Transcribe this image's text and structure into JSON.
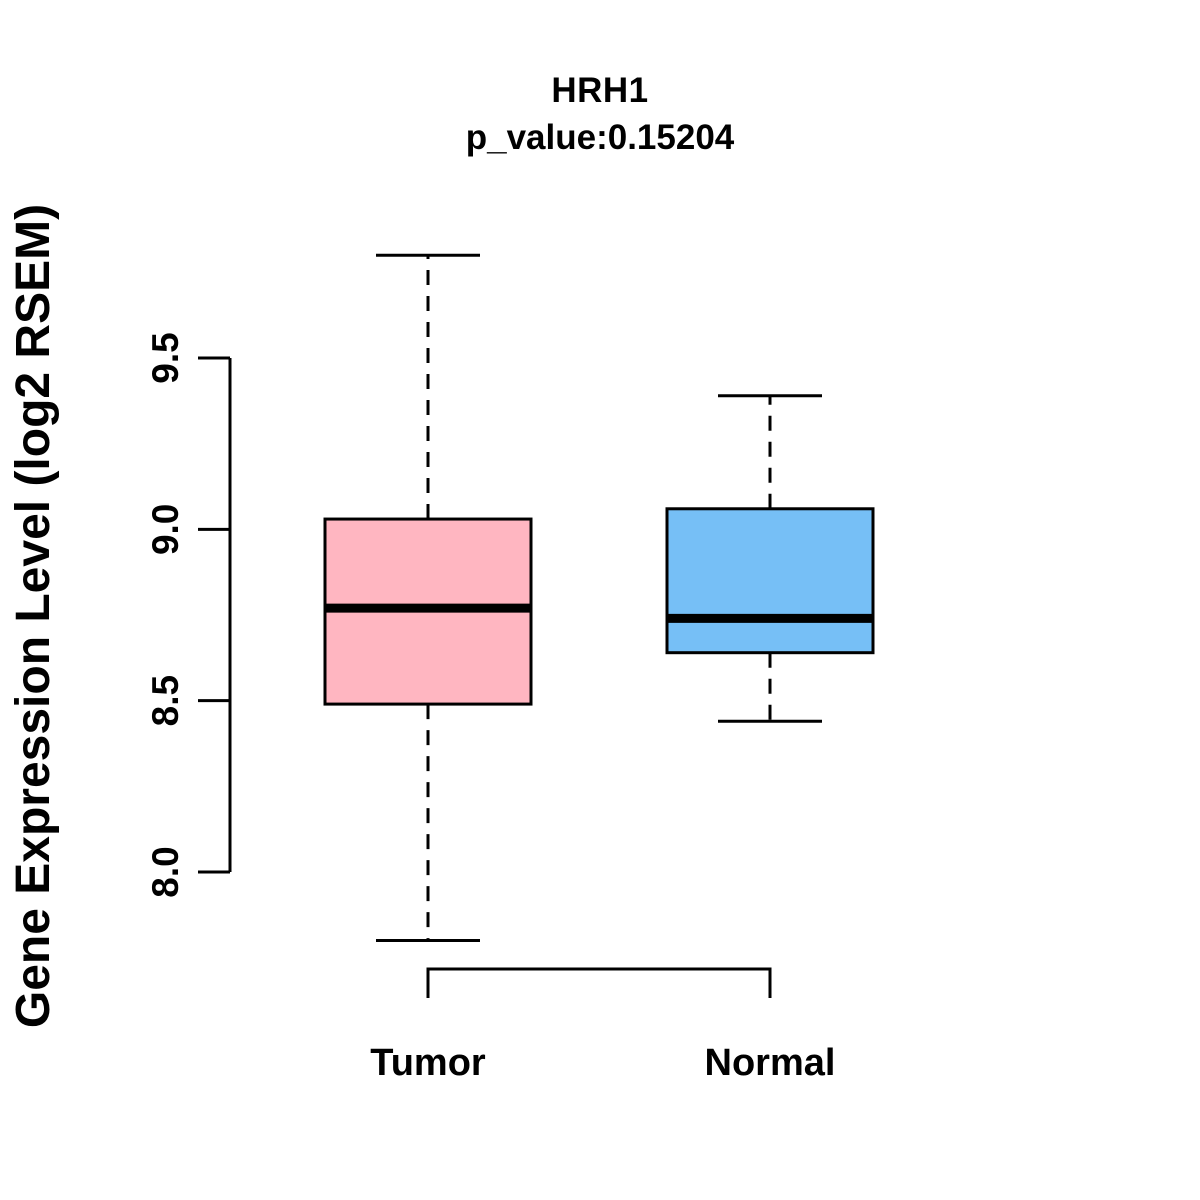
{
  "chart": {
    "title": "HRH1",
    "subtitle": "p_value:0.15204",
    "y_axis_label": "Gene Expression Level (log2 RSEM)"
  },
  "chart_data": {
    "type": "boxplot",
    "title": "HRH1",
    "subtitle": "p_value:0.15204",
    "p_value": 0.15204,
    "gene": "HRH1",
    "xlabel": "",
    "ylabel": "Gene Expression Level (log2 RSEM)",
    "ylim": [
      7.6,
      9.9
    ],
    "y_ticks": [
      8.0,
      8.5,
      9.0,
      9.5
    ],
    "y_tick_labels": [
      "8.0",
      "8.5",
      "9.0",
      "9.5"
    ],
    "grid": false,
    "legend": "none",
    "line_color": "#000000",
    "whisker_style": "dashed",
    "groups": [
      {
        "label": "Tumor",
        "fill": "#FFB6C1",
        "whisker_low": 7.8,
        "q1": 8.49,
        "median": 8.77,
        "q3": 9.03,
        "whisker_high": 9.8
      },
      {
        "label": "Normal",
        "fill": "#76BFF6",
        "whisker_low": 8.44,
        "q1": 8.64,
        "median": 8.74,
        "q3": 9.06,
        "whisker_high": 9.39
      }
    ],
    "comparison_bracket": {
      "connects": [
        "Tumor",
        "Normal"
      ],
      "position": "below-plot"
    }
  }
}
